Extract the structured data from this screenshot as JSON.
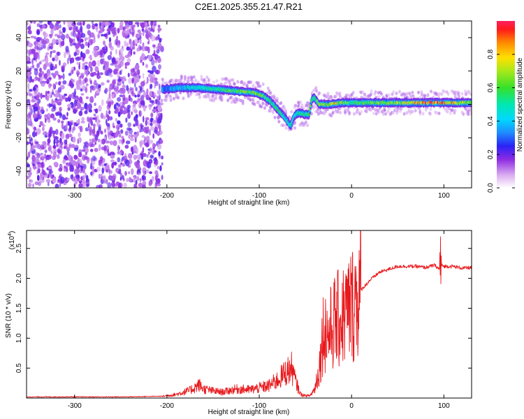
{
  "figure_title": "C2E1.2025.355.21.47.R21",
  "colors": {
    "snr_line": "#e8191d",
    "axis": "#000000",
    "background": "#ffffff"
  },
  "chart_data": [
    {
      "type": "heatmap",
      "title": "C2E1.2025.355.21.47.R21",
      "xlabel": "Height of straight line (km)",
      "ylabel": "Frequency (Hz)",
      "xlim": [
        -352,
        130
      ],
      "ylim": [
        -50,
        50
      ],
      "xticks": [
        -300,
        -200,
        -100,
        0,
        100
      ],
      "xtick_labels": [
        "-300",
        "-200",
        "-100",
        "0",
        "100"
      ],
      "yticks": [
        -40,
        -20,
        0,
        20,
        40
      ],
      "ytick_labels": [
        "-40",
        "-20",
        "0",
        "20",
        "40"
      ],
      "colorbar": {
        "label": "Normalized spectral amplitude",
        "range": [
          0,
          1
        ],
        "ticks": [
          0.0,
          0.2,
          0.4,
          0.6,
          0.8
        ],
        "tick_labels": [
          "0.0",
          "0.2",
          "0.4",
          "0.6",
          "0.8"
        ]
      },
      "noise_region_x": [
        -352,
        -205
      ],
      "ridge": [
        {
          "x": -205,
          "y": 9
        },
        {
          "x": -185,
          "y": 10
        },
        {
          "x": -165,
          "y": 10
        },
        {
          "x": -145,
          "y": 9
        },
        {
          "x": -125,
          "y": 8
        },
        {
          "x": -105,
          "y": 7
        },
        {
          "x": -95,
          "y": 5
        },
        {
          "x": -88,
          "y": 2
        },
        {
          "x": -80,
          "y": -3
        },
        {
          "x": -72,
          "y": -8
        },
        {
          "x": -66,
          "y": -13
        },
        {
          "x": -62,
          "y": -7
        },
        {
          "x": -58,
          "y": -5
        },
        {
          "x": -50,
          "y": -6
        },
        {
          "x": -46,
          "y": -6
        },
        {
          "x": -43,
          "y": 3
        },
        {
          "x": -40,
          "y": 4
        },
        {
          "x": -35,
          "y": 0
        },
        {
          "x": -25,
          "y": 0
        },
        {
          "x": -10,
          "y": 1
        },
        {
          "x": 0,
          "y": 1
        },
        {
          "x": 30,
          "y": 1
        },
        {
          "x": 60,
          "y": 1
        },
        {
          "x": 90,
          "y": 1
        },
        {
          "x": 110,
          "y": 1
        },
        {
          "x": 130,
          "y": 1
        }
      ],
      "ridge_peak_amplitude": [
        {
          "x": -205,
          "a": 0.35
        },
        {
          "x": -150,
          "a": 0.55
        },
        {
          "x": -110,
          "a": 0.7
        },
        {
          "x": -60,
          "a": 0.5
        },
        {
          "x": -20,
          "a": 0.8
        },
        {
          "x": 0,
          "a": 0.6
        },
        {
          "x": 50,
          "a": 0.7
        },
        {
          "x": 80,
          "a": 0.95
        },
        {
          "x": 100,
          "a": 0.9
        },
        {
          "x": 130,
          "a": 0.7
        }
      ]
    },
    {
      "type": "line",
      "xlabel": "Height of straight line (km)",
      "ylabel": "SNR (10 * v/v)",
      "yscale_label": "(x10",
      "yscale_exp": "4",
      "yscale_close": ")",
      "xlim": [
        -352,
        130
      ],
      "ylim": [
        0,
        2.8
      ],
      "xticks": [
        -300,
        -200,
        -100,
        0,
        100
      ],
      "xtick_labels": [
        "-300",
        "-200",
        "-100",
        "0",
        "100"
      ],
      "yticks": [
        0.5,
        1.0,
        1.5,
        2.0,
        2.5
      ],
      "ytick_labels": [
        "0.5",
        "1.0",
        "1.5",
        "2.0",
        "2.5"
      ],
      "series": [
        {
          "name": "SNR",
          "x": [
            -352,
            -250,
            -205,
            -190,
            -175,
            -165,
            -160,
            -150,
            -140,
            -125,
            -110,
            -100,
            -90,
            -80,
            -72,
            -65,
            -60,
            -55,
            -50,
            -45,
            -40,
            -35,
            -30,
            -25,
            -20,
            -15,
            -10,
            -5,
            0,
            10,
            20,
            30,
            40,
            50,
            60,
            70,
            80,
            90,
            95,
            97,
            100,
            110,
            120,
            130
          ],
          "y": [
            0.02,
            0.02,
            0.03,
            0.06,
            0.13,
            0.22,
            0.15,
            0.12,
            0.1,
            0.15,
            0.14,
            0.17,
            0.2,
            0.3,
            0.42,
            0.5,
            0.25,
            0.06,
            0.04,
            0.04,
            0.15,
            0.5,
            1.2,
            1.05,
            1.25,
            1.3,
            1.35,
            1.45,
            1.55,
            1.8,
            1.97,
            2.1,
            2.15,
            2.2,
            2.2,
            2.2,
            2.18,
            2.22,
            2.15,
            2.22,
            2.2,
            2.2,
            2.17,
            2.18
          ]
        }
      ]
    }
  ]
}
